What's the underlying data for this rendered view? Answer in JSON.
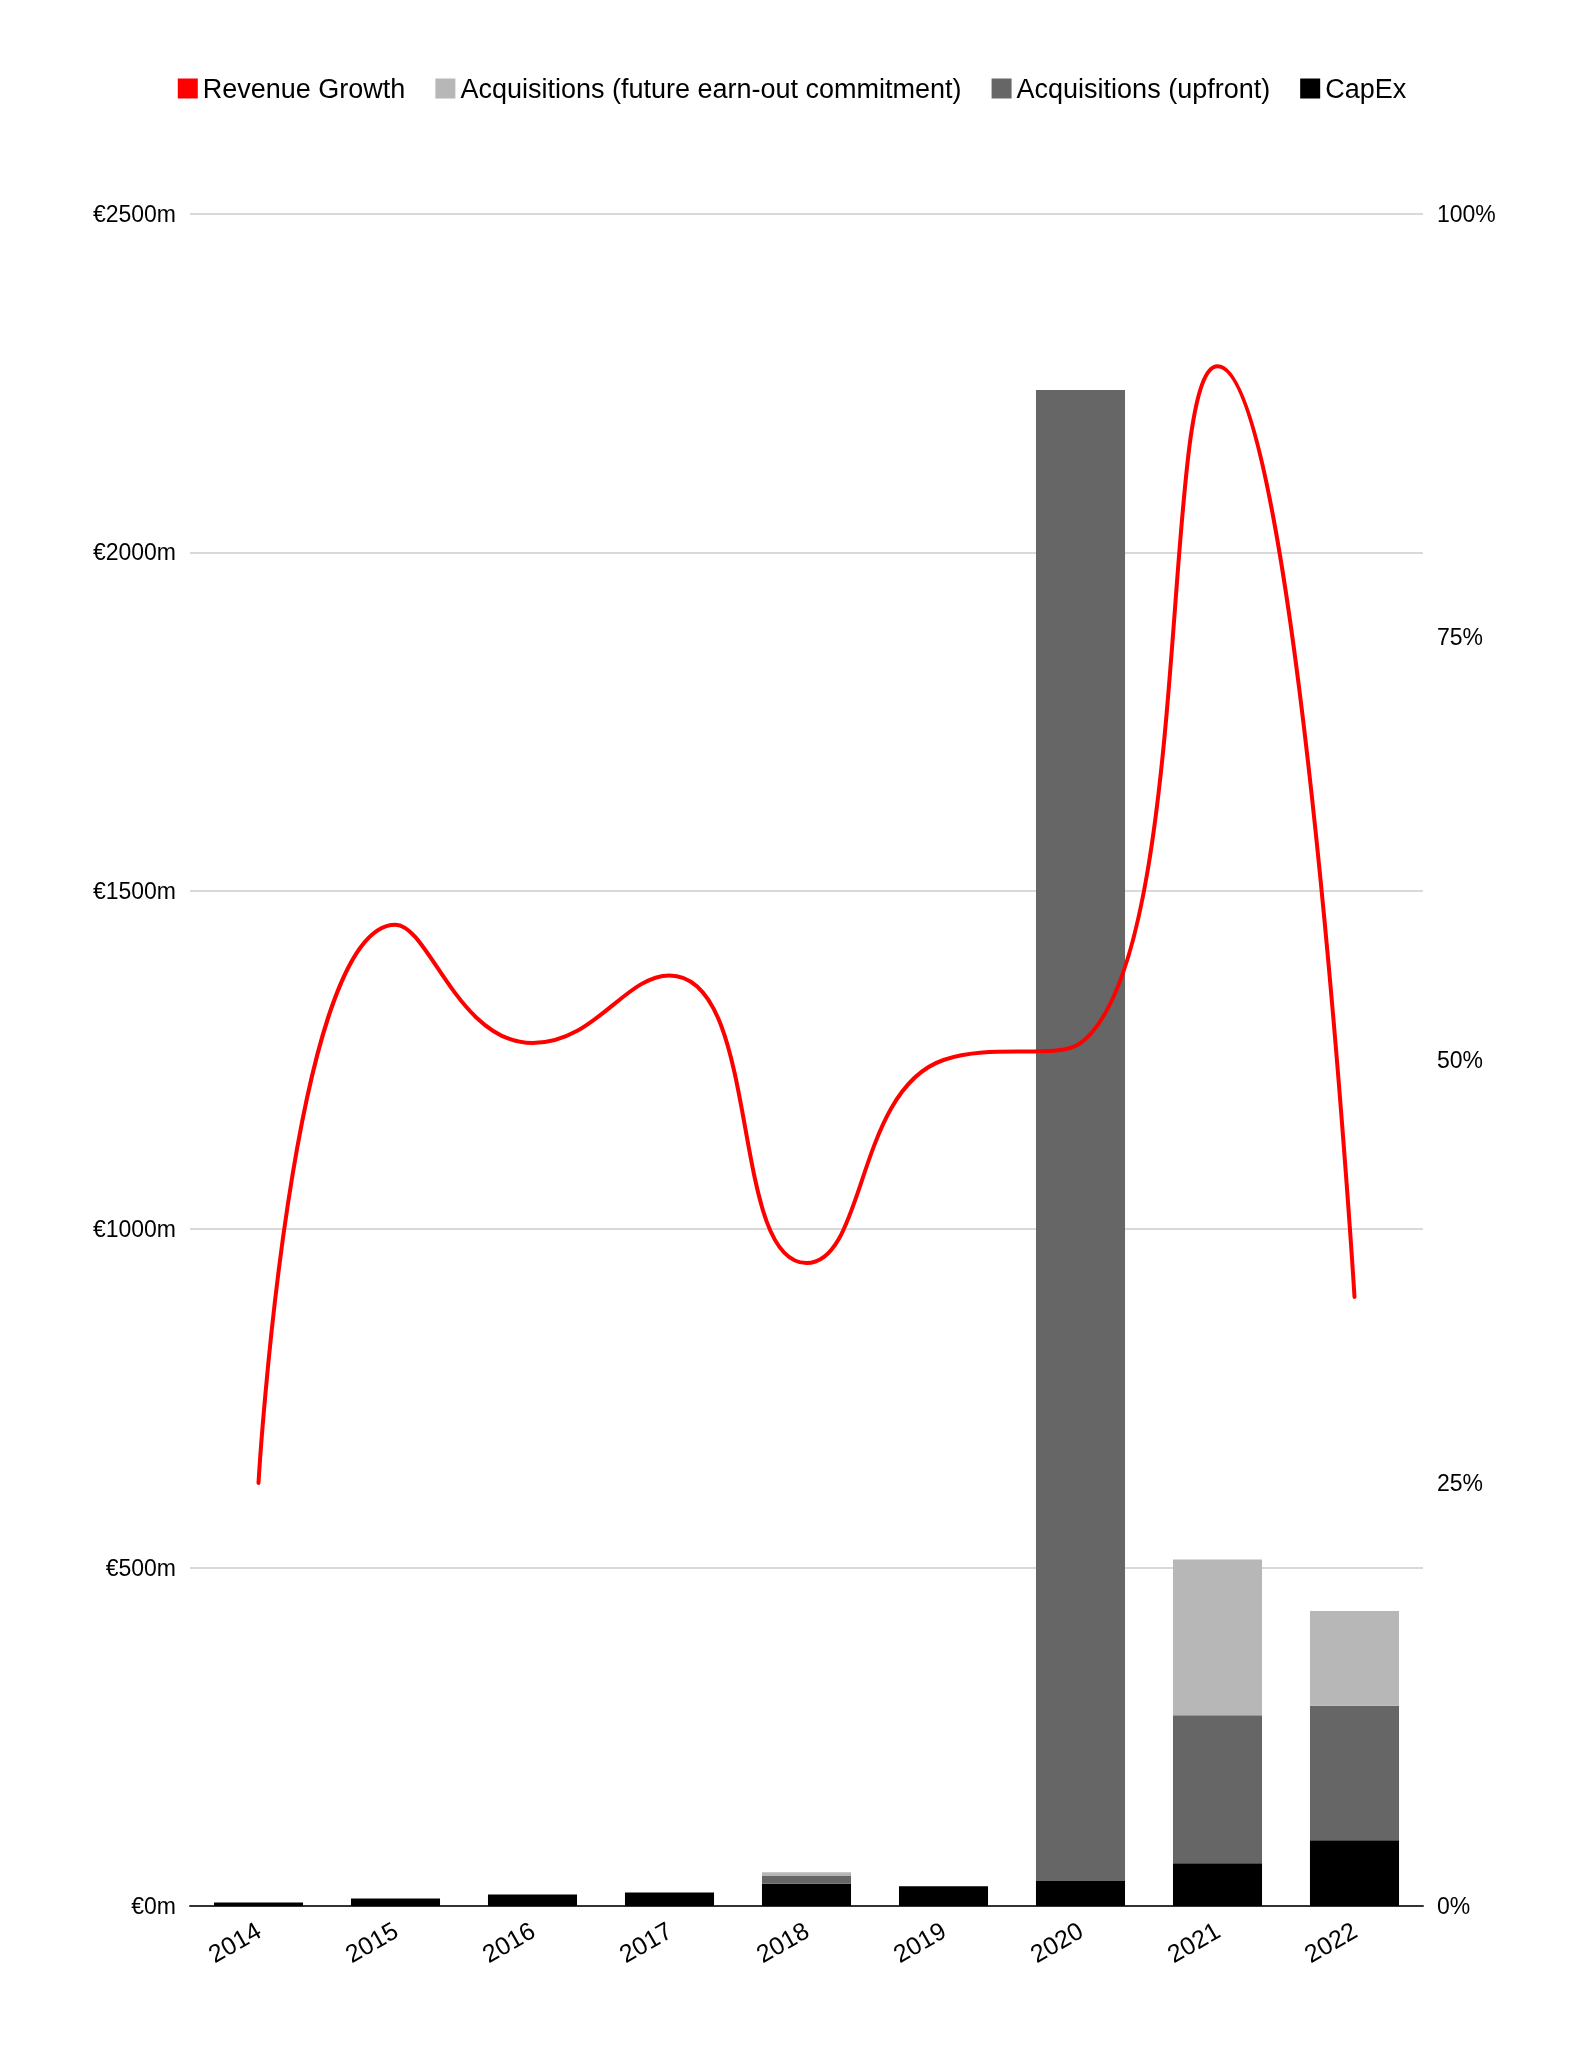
{
  "chart_data": {
    "type": "bar",
    "stacked": true,
    "categories": [
      "2014",
      "2015",
      "2016",
      "2017",
      "2018",
      "2019",
      "2020",
      "2021",
      "2022"
    ],
    "series": [
      {
        "name": "CapEx",
        "color": "#000000",
        "values": [
          5,
          11,
          17,
          20,
          33,
          29,
          37,
          63,
          97
        ]
      },
      {
        "name": "Acquisitions (upfront)",
        "color": "#666666",
        "values": [
          0,
          0,
          0,
          0,
          12,
          0,
          2203,
          219,
          199
        ]
      },
      {
        "name": "Acquisitions (future earn-out commitment)",
        "color": "#b7b7b7",
        "values": [
          0,
          0,
          0,
          0,
          5,
          0,
          0,
          230,
          140
        ]
      },
      {
        "name": "Revenue Growth",
        "type": "line",
        "axis": "y2",
        "color": "#ff0000",
        "marker": "none",
        "values": [
          25,
          58,
          51,
          55,
          38,
          50,
          51,
          91,
          36
        ]
      }
    ],
    "ylim": [
      0,
      2500
    ],
    "yticks": [
      {
        "value": 0,
        "label": "€0m"
      },
      {
        "value": 500,
        "label": "€500m"
      },
      {
        "value": 1000,
        "label": "€1000m"
      },
      {
        "value": 1500,
        "label": "€1500m"
      },
      {
        "value": 2000,
        "label": "€2000m"
      },
      {
        "value": 2500,
        "label": "€2500m"
      }
    ],
    "y2lim": [
      0,
      100
    ],
    "y2ticks": [
      {
        "value": 0,
        "label": "0%"
      },
      {
        "value": 25,
        "label": "25%"
      },
      {
        "value": 50,
        "label": "50%"
      },
      {
        "value": 75,
        "label": "75%"
      },
      {
        "value": 100,
        "label": "100%"
      }
    ],
    "grid": "y",
    "legend": "top"
  }
}
